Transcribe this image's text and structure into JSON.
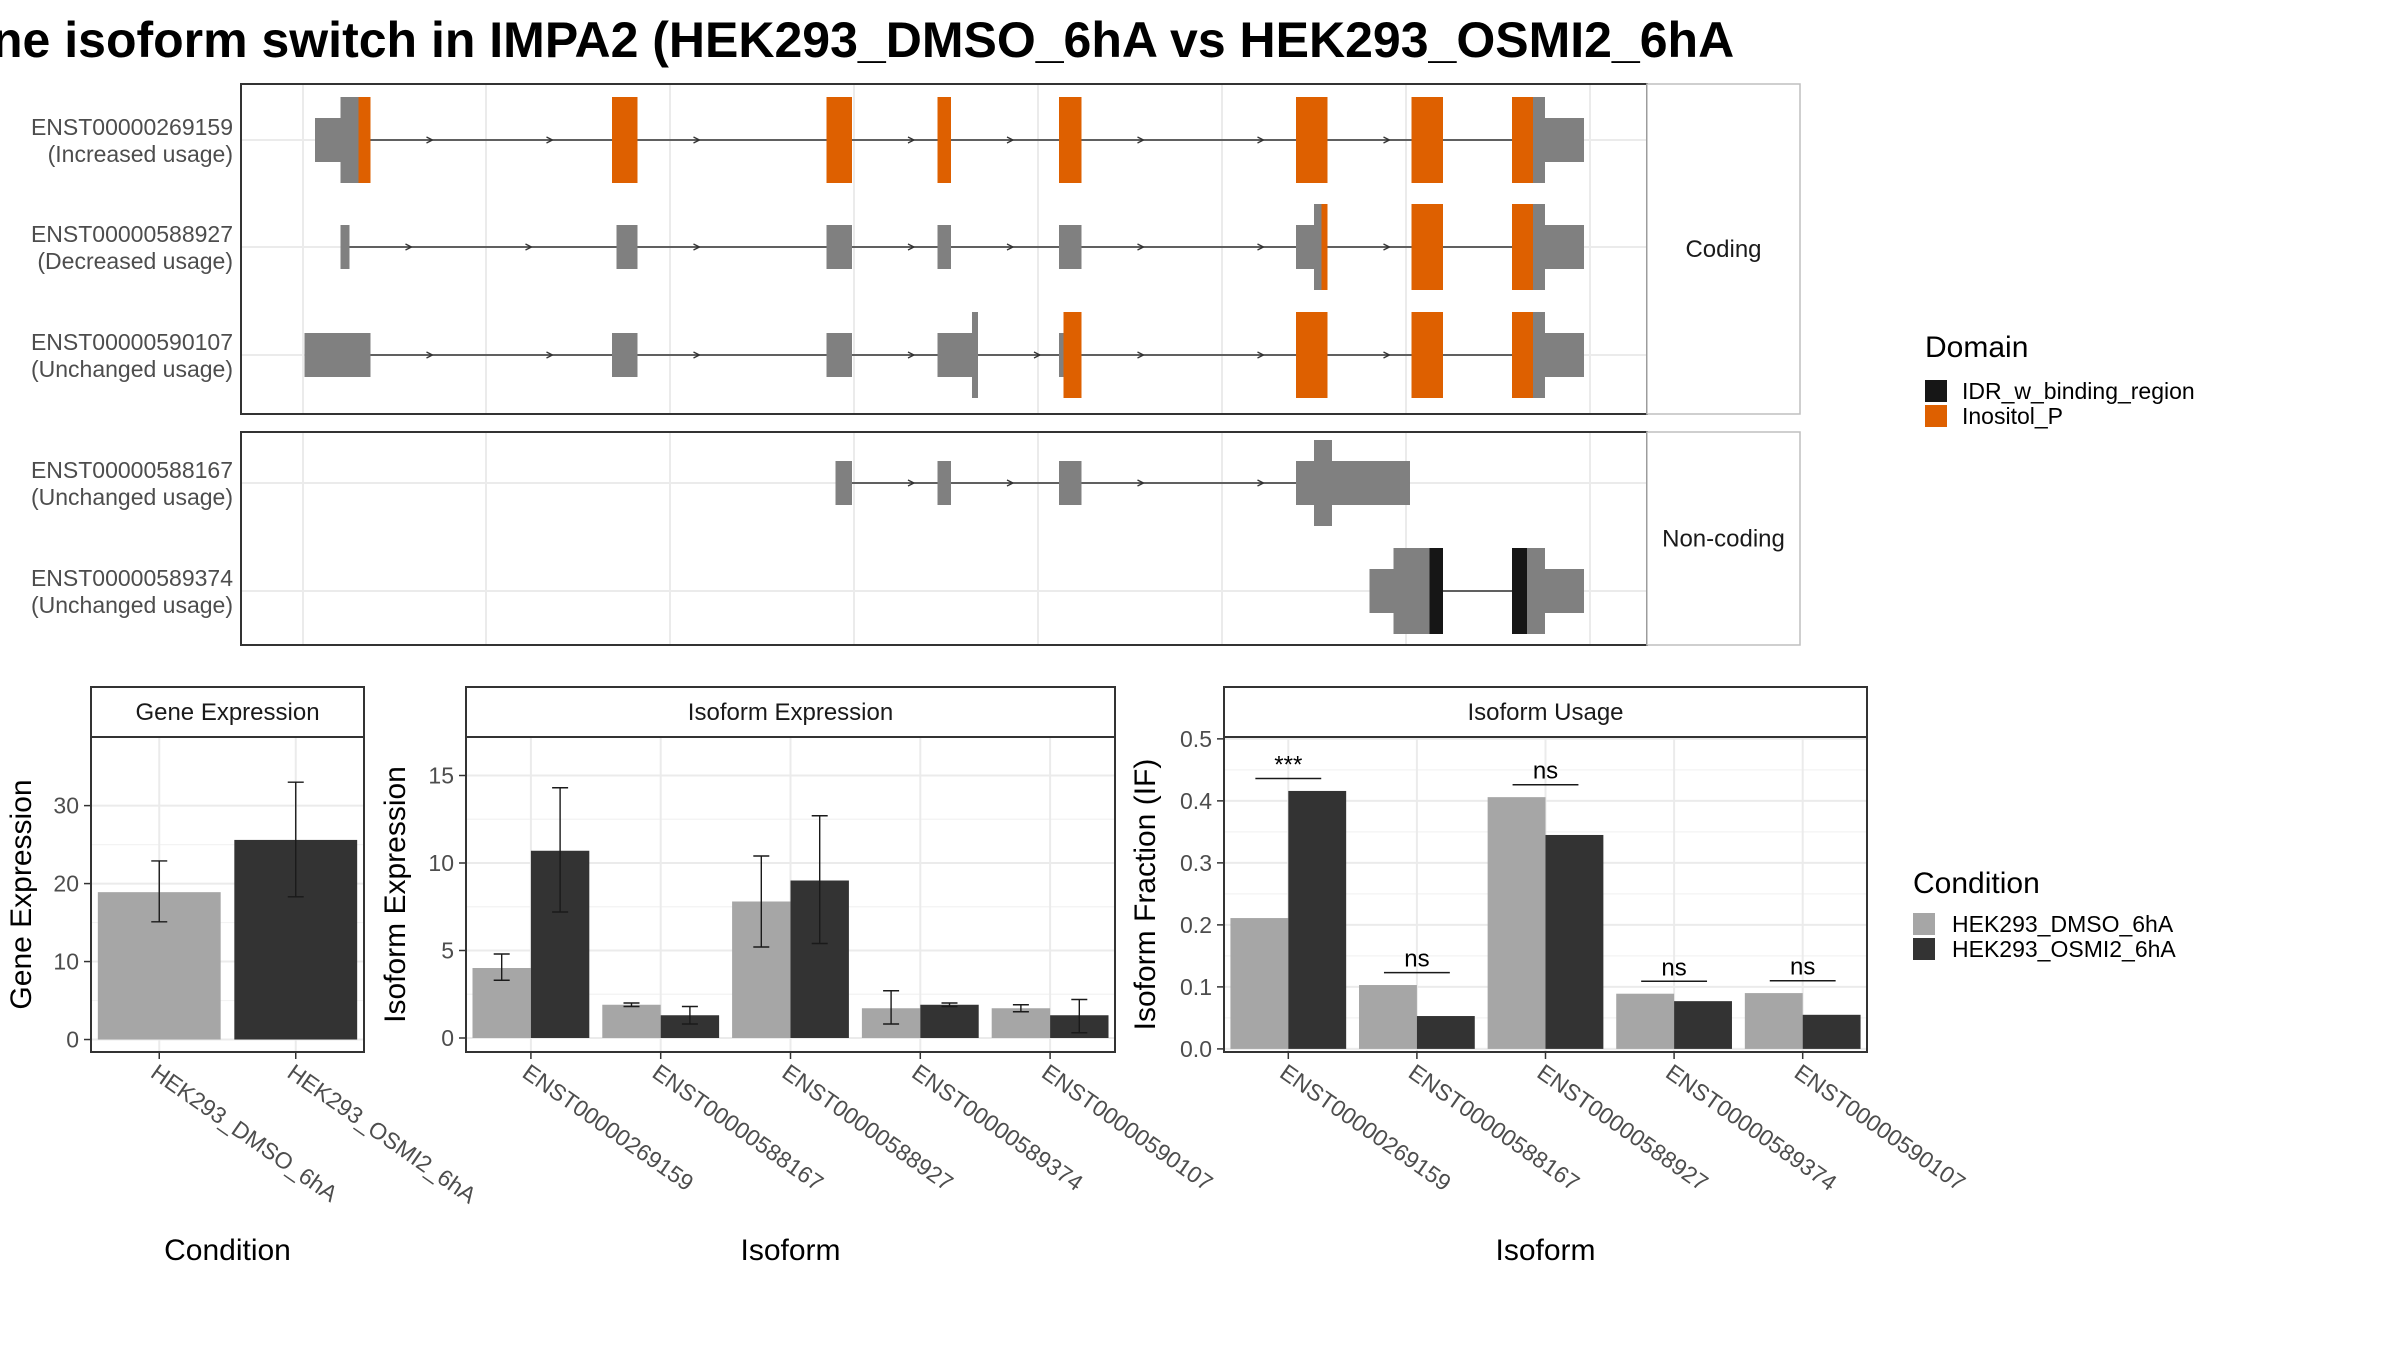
{
  "title": "ne isoform switch in IMPA2 (HEK293_DMSO_6hA vs HEK293_OSMI2_6hA",
  "colors": {
    "exon": "#808080",
    "idr": "#161616",
    "inositol": "#de6000",
    "dmso": "#a6a6a6",
    "osmi2": "#333333",
    "grid": "#ebebeb",
    "strip_bg": "#ffffff",
    "panel_border": "#333333"
  },
  "transcript_panel": {
    "groups": [
      {
        "label": "Coding",
        "transcripts": [
          {
            "id": "ENST00000269159",
            "usage": "(Increased usage)",
            "line": [
              210,
              1056
            ],
            "exons": [
              {
                "s": 210,
                "e": 239,
                "h": "utr"
              },
              {
                "s": 227,
                "e": 239,
                "h": "cds"
              },
              {
                "s": 239,
                "e": 247,
                "h": "cds",
                "d": "inositol"
              },
              {
                "s": 408,
                "e": 425,
                "h": "cds",
                "d": "inositol"
              },
              {
                "s": 551,
                "e": 568,
                "h": "cds",
                "d": "inositol"
              },
              {
                "s": 625,
                "e": 634,
                "h": "cds",
                "d": "inositol"
              },
              {
                "s": 706,
                "e": 721,
                "h": "cds",
                "d": "inositol"
              },
              {
                "s": 864,
                "e": 885,
                "h": "cds",
                "d": "inositol"
              },
              {
                "s": 941,
                "e": 962,
                "h": "cds",
                "d": "inositol"
              },
              {
                "s": 1008,
                "e": 1022,
                "h": "cds",
                "d": "inositol"
              },
              {
                "s": 1022,
                "e": 1056,
                "h": "utr"
              },
              {
                "s": 1022,
                "e": 1030,
                "h": "cds"
              }
            ]
          },
          {
            "id": "ENST00000588927",
            "usage": "(Decreased usage)",
            "line": [
              227,
              1056
            ],
            "exons": [
              {
                "s": 227,
                "e": 233,
                "h": "utr"
              },
              {
                "s": 411,
                "e": 425,
                "h": "utr"
              },
              {
                "s": 551,
                "e": 568,
                "h": "utr"
              },
              {
                "s": 625,
                "e": 634,
                "h": "utr"
              },
              {
                "s": 706,
                "e": 721,
                "h": "utr"
              },
              {
                "s": 864,
                "e": 876,
                "h": "utr"
              },
              {
                "s": 876,
                "e": 881,
                "h": "cds"
              },
              {
                "s": 881,
                "e": 885,
                "h": "cds",
                "d": "inositol"
              },
              {
                "s": 941,
                "e": 962,
                "h": "cds",
                "d": "inositol"
              },
              {
                "s": 1008,
                "e": 1022,
                "h": "cds",
                "d": "inositol"
              },
              {
                "s": 1022,
                "e": 1056,
                "h": "utr"
              },
              {
                "s": 1022,
                "e": 1030,
                "h": "cds"
              }
            ]
          },
          {
            "id": "ENST00000590107",
            "usage": "(Unchanged usage)",
            "line": [
              203,
              1056
            ],
            "exons": [
              {
                "s": 203,
                "e": 247,
                "h": "utr"
              },
              {
                "s": 408,
                "e": 425,
                "h": "utr"
              },
              {
                "s": 551,
                "e": 568,
                "h": "utr"
              },
              {
                "s": 625,
                "e": 648,
                "h": "utr"
              },
              {
                "s": 648,
                "e": 652,
                "h": "cds"
              },
              {
                "s": 706,
                "e": 709,
                "h": "utr"
              },
              {
                "s": 709,
                "e": 721,
                "h": "cds",
                "d": "inositol"
              },
              {
                "s": 864,
                "e": 885,
                "h": "cds",
                "d": "inositol"
              },
              {
                "s": 941,
                "e": 962,
                "h": "cds",
                "d": "inositol"
              },
              {
                "s": 1008,
                "e": 1022,
                "h": "cds",
                "d": "inositol"
              },
              {
                "s": 1022,
                "e": 1056,
                "h": "utr"
              },
              {
                "s": 1022,
                "e": 1030,
                "h": "cds"
              }
            ]
          }
        ]
      },
      {
        "label": "Non-coding",
        "transcripts": [
          {
            "id": "ENST00000588167",
            "usage": "(Unchanged usage)",
            "line": [
              557,
              940
            ],
            "exons": [
              {
                "s": 557,
                "e": 568,
                "h": "utr"
              },
              {
                "s": 625,
                "e": 634,
                "h": "utr"
              },
              {
                "s": 706,
                "e": 721,
                "h": "utr"
              },
              {
                "s": 864,
                "e": 940,
                "h": "utr"
              },
              {
                "s": 876,
                "e": 888,
                "h": "cds"
              }
            ]
          },
          {
            "id": "ENST00000589374",
            "usage": "(Unchanged usage)",
            "line": [
              913,
              1056
            ],
            "exons": [
              {
                "s": 913,
                "e": 953,
                "h": "utr"
              },
              {
                "s": 929,
                "e": 953,
                "h": "cds"
              },
              {
                "s": 953,
                "e": 962,
                "h": "cds",
                "d": "idr"
              },
              {
                "s": 1008,
                "e": 1018,
                "h": "cds",
                "d": "idr"
              },
              {
                "s": 1018,
                "e": 1030,
                "h": "cds"
              },
              {
                "s": 1030,
                "e": 1056,
                "h": "utr"
              }
            ]
          }
        ]
      }
    ]
  },
  "domain_legend": {
    "title": "Domain",
    "items": [
      {
        "label": "IDR_w_binding_region",
        "color": "#161616"
      },
      {
        "label": "Inositol_P",
        "color": "#de6000"
      }
    ]
  },
  "condition_legend": {
    "title": "Condition",
    "items": [
      {
        "label": "HEK293_DMSO_6hA",
        "color": "#a6a6a6"
      },
      {
        "label": "HEK293_OSMI2_6hA",
        "color": "#333333"
      }
    ]
  },
  "chart_data": [
    {
      "type": "bar",
      "title": "Gene Expression",
      "xlabel": "Condition",
      "ylabel": "Gene Expression",
      "categories": [
        "HEK293_DMSO_6hA",
        "HEK293_OSMI2_6hA"
      ],
      "values": [
        18.9,
        25.6
      ],
      "errors": [
        [
          15.1,
          22.9
        ],
        [
          18.3,
          33.0
        ]
      ],
      "ylim": [
        -1.6,
        38.8
      ],
      "yticks": [
        0,
        10,
        20,
        30
      ],
      "grid": true
    },
    {
      "type": "bar",
      "title": "Isoform Expression",
      "xlabel": "Isoform",
      "ylabel": "Isoform Expression",
      "categories": [
        "ENST00000269159",
        "ENST00000588167",
        "ENST00000588927",
        "ENST00000589374",
        "ENST00000590107"
      ],
      "series": [
        {
          "name": "HEK293_DMSO_6hA",
          "values": [
            4.0,
            1.9,
            7.8,
            1.7,
            1.7
          ],
          "errors": [
            [
              3.3,
              4.8
            ],
            [
              1.8,
              2.0
            ],
            [
              5.2,
              10.4
            ],
            [
              0.8,
              2.7
            ],
            [
              1.5,
              1.9
            ]
          ]
        },
        {
          "name": "HEK293_OSMI2_6hA",
          "values": [
            10.7,
            1.3,
            9.0,
            1.9,
            1.3
          ],
          "errors": [
            [
              7.2,
              14.3
            ],
            [
              0.8,
              1.8
            ],
            [
              5.4,
              12.7
            ],
            [
              1.8,
              2.0
            ],
            [
              0.3,
              2.2
            ]
          ]
        }
      ],
      "ylim": [
        -0.8,
        17.2
      ],
      "yticks": [
        0,
        5,
        10,
        15
      ],
      "grid": true
    },
    {
      "type": "bar",
      "title": "Isoform Usage",
      "xlabel": "Isoform",
      "ylabel": "Isoform Fraction (IF)",
      "categories": [
        "ENST00000269159",
        "ENST00000588167",
        "ENST00000588927",
        "ENST00000589374",
        "ENST00000590107"
      ],
      "series": [
        {
          "name": "HEK293_DMSO_6hA",
          "values": [
            0.211,
            0.103,
            0.406,
            0.089,
            0.09
          ]
        },
        {
          "name": "HEK293_OSMI2_6hA",
          "values": [
            0.416,
            0.053,
            0.345,
            0.077,
            0.055
          ]
        }
      ],
      "annotations": [
        {
          "category": "ENST00000269159",
          "label": "***",
          "y": 0.436
        },
        {
          "category": "ENST00000588167",
          "label": "ns",
          "y": 0.123
        },
        {
          "category": "ENST00000588927",
          "label": "ns",
          "y": 0.426
        },
        {
          "category": "ENST00000589374",
          "label": "ns",
          "y": 0.109
        },
        {
          "category": "ENST00000590107",
          "label": "ns",
          "y": 0.11
        }
      ],
      "ylim": [
        -0.005,
        0.503
      ],
      "yticks": [
        0.0,
        0.1,
        0.2,
        0.3,
        0.4,
        0.5
      ],
      "ytick_labels": [
        "0.0",
        "0.1",
        "0.2",
        "0.3",
        "0.4",
        "0.5"
      ],
      "grid": true
    }
  ]
}
